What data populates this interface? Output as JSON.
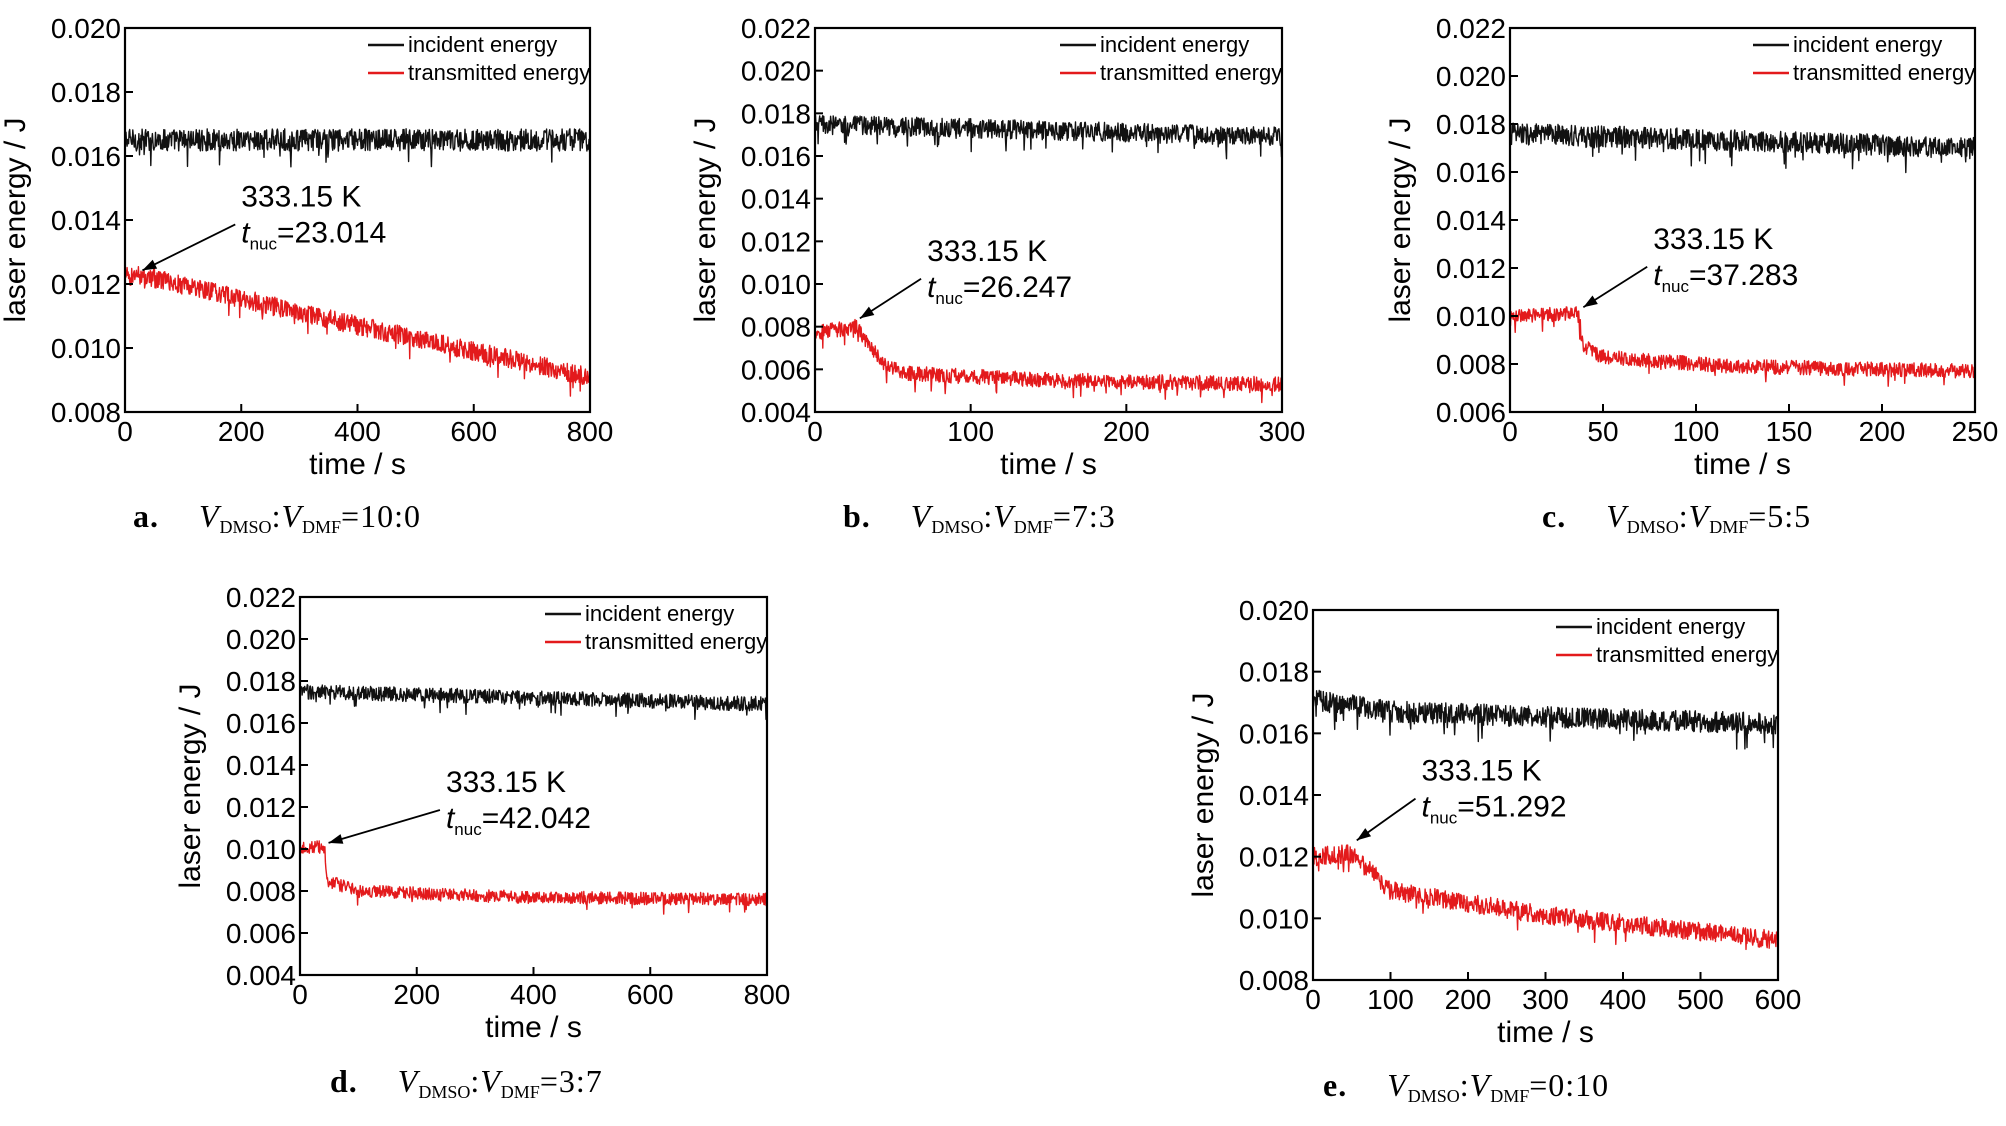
{
  "chart_data": [
    {
      "type": "line",
      "id": "a",
      "ylabel": "laser energy / J",
      "xlabel": "time / s",
      "xlim": [
        0,
        800
      ],
      "ylim": [
        0.008,
        0.02
      ],
      "xticks": [
        "0",
        "200",
        "400",
        "600",
        "800"
      ],
      "yticks": [
        "0.008",
        "0.010",
        "0.012",
        "0.014",
        "0.016",
        "0.018",
        "0.020"
      ],
      "legend_position": "top-right",
      "series": [
        {
          "name": "incident energy",
          "color": "#111111",
          "noise": 0.00035,
          "points": [
            [
              0,
              0.0165
            ],
            [
              800,
              0.0165
            ]
          ]
        },
        {
          "name": "transmitted energy",
          "color": "#e31a1c",
          "noise": 0.0003,
          "points": [
            [
              0,
              0.0122
            ],
            [
              23,
              0.0123
            ],
            [
              400,
              0.0107
            ],
            [
              800,
              0.0091
            ]
          ]
        }
      ],
      "annotation": {
        "line1": "333.15 K",
        "t_main": "t",
        "t_sub": "nuc",
        "t_value": "=23.014",
        "x": 23.014,
        "y": 0.0123,
        "text_x": 200,
        "text_y": 0.0133
      },
      "caption": {
        "letter": "a.",
        "v": "V",
        "sub1": "DMSO",
        "sep": ":",
        "sub2": "DMF",
        "ratio": "=10:0"
      }
    },
    {
      "type": "line",
      "id": "b",
      "ylabel": "laser energy / J",
      "xlabel": "time / s",
      "xlim": [
        0,
        300
      ],
      "ylim": [
        0.004,
        0.022
      ],
      "xticks": [
        "0",
        "100",
        "200",
        "300"
      ],
      "yticks": [
        "0.004",
        "0.006",
        "0.008",
        "0.010",
        "0.012",
        "0.014",
        "0.016",
        "0.018",
        "0.020",
        "0.022"
      ],
      "legend_position": "top-right",
      "series": [
        {
          "name": "incident energy",
          "color": "#111111",
          "noise": 0.00045,
          "points": [
            [
              0,
              0.0175
            ],
            [
              300,
              0.0169
            ]
          ]
        },
        {
          "name": "transmitted energy",
          "color": "#e31a1c",
          "noise": 0.00035,
          "points": [
            [
              0,
              0.0077
            ],
            [
              26,
              0.008
            ],
            [
              45,
              0.0062
            ],
            [
              60,
              0.0058
            ],
            [
              150,
              0.0055
            ],
            [
              300,
              0.0053
            ]
          ]
        }
      ],
      "annotation": {
        "line1": "333.15 K",
        "t_main": "t",
        "t_sub": "nuc",
        "t_value": "=26.247",
        "x": 26.247,
        "y": 0.0082,
        "text_x": 72,
        "text_y": 0.0094
      },
      "caption": {
        "letter": "b.",
        "v": "V",
        "sub1": "DMSO",
        "sep": ":",
        "sub2": "DMF",
        "ratio": "=7:3"
      }
    },
    {
      "type": "line",
      "id": "c",
      "ylabel": "laser energy / J",
      "xlabel": "time / s",
      "xlim": [
        0,
        250
      ],
      "ylim": [
        0.006,
        0.022
      ],
      "xticks": [
        "0",
        "50",
        "100",
        "150",
        "200",
        "250"
      ],
      "yticks": [
        "0.006",
        "0.008",
        "0.010",
        "0.012",
        "0.014",
        "0.016",
        "0.018",
        "0.020",
        "0.022"
      ],
      "legend_position": "top-right",
      "series": [
        {
          "name": "incident energy",
          "color": "#111111",
          "noise": 0.00045,
          "points": [
            [
              0,
              0.0176
            ],
            [
              250,
              0.017
            ]
          ]
        },
        {
          "name": "transmitted energy",
          "color": "#e31a1c",
          "noise": 0.0003,
          "points": [
            [
              0,
              0.01
            ],
            [
              37,
              0.0101
            ],
            [
              39,
              0.0088
            ],
            [
              50,
              0.0083
            ],
            [
              120,
              0.0079
            ],
            [
              250,
              0.0077
            ]
          ]
        }
      ],
      "annotation": {
        "line1": "333.15 K",
        "t_main": "t",
        "t_sub": "nuc",
        "t_value": "=37.283",
        "x": 37.283,
        "y": 0.0102,
        "text_x": 77,
        "text_y": 0.0113
      },
      "caption": {
        "letter": "c.",
        "v": "V",
        "sub1": "DMSO",
        "sep": ":",
        "sub2": "DMF",
        "ratio": "=5:5"
      }
    },
    {
      "type": "line",
      "id": "d",
      "ylabel": "laser energy / J",
      "xlabel": "time / s",
      "xlim": [
        0,
        800
      ],
      "ylim": [
        0.004,
        0.022
      ],
      "xticks": [
        "0",
        "200",
        "400",
        "600",
        "800"
      ],
      "yticks": [
        "0.004",
        "0.006",
        "0.008",
        "0.010",
        "0.012",
        "0.014",
        "0.016",
        "0.018",
        "0.020",
        "0.022"
      ],
      "legend_position": "top-right",
      "series": [
        {
          "name": "incident energy",
          "color": "#111111",
          "noise": 0.00035,
          "points": [
            [
              0,
              0.0175
            ],
            [
              800,
              0.0169
            ]
          ]
        },
        {
          "name": "transmitted energy",
          "color": "#e31a1c",
          "noise": 0.0003,
          "points": [
            [
              0,
              0.0101
            ],
            [
              42,
              0.0101
            ],
            [
              46,
              0.0085
            ],
            [
              100,
              0.008
            ],
            [
              400,
              0.0077
            ],
            [
              800,
              0.0076
            ]
          ]
        }
      ],
      "annotation": {
        "line1": "333.15 K",
        "t_main": "t",
        "t_sub": "nuc",
        "t_value": "=42.042",
        "x": 42.042,
        "y": 0.0101,
        "text_x": 250,
        "text_y": 0.011
      },
      "caption": {
        "letter": "d.",
        "v": "V",
        "sub1": "DMSO",
        "sep": ":",
        "sub2": "DMF",
        "ratio": "=3:7"
      }
    },
    {
      "type": "line",
      "id": "e",
      "ylabel": "laser energy / J",
      "xlabel": "time / s",
      "xlim": [
        0,
        600
      ],
      "ylim": [
        0.008,
        0.02
      ],
      "xticks": [
        "0",
        "100",
        "200",
        "300",
        "400",
        "500",
        "600"
      ],
      "yticks": [
        "0.008",
        "0.010",
        "0.012",
        "0.014",
        "0.016",
        "0.018",
        "0.020"
      ],
      "legend_position": "top-right",
      "series": [
        {
          "name": "incident energy",
          "color": "#111111",
          "noise": 0.00035,
          "points": [
            [
              0,
              0.0171
            ],
            [
              100,
              0.0167
            ],
            [
              600,
              0.0163
            ]
          ]
        },
        {
          "name": "transmitted energy",
          "color": "#e31a1c",
          "noise": 0.0003,
          "points": [
            [
              0,
              0.012
            ],
            [
              51,
              0.0121
            ],
            [
              100,
              0.0109
            ],
            [
              300,
              0.0101
            ],
            [
              600,
              0.0093
            ]
          ]
        }
      ],
      "annotation": {
        "line1": "333.15 K",
        "t_main": "t",
        "t_sub": "nuc",
        "t_value": "=51.292",
        "x": 51.292,
        "y": 0.0124,
        "text_x": 140,
        "text_y": 0.0133
      },
      "caption": {
        "letter": "e.",
        "v": "V",
        "sub1": "DMSO",
        "sep": ":",
        "sub2": "DMF",
        "ratio": "=0:10"
      }
    }
  ]
}
